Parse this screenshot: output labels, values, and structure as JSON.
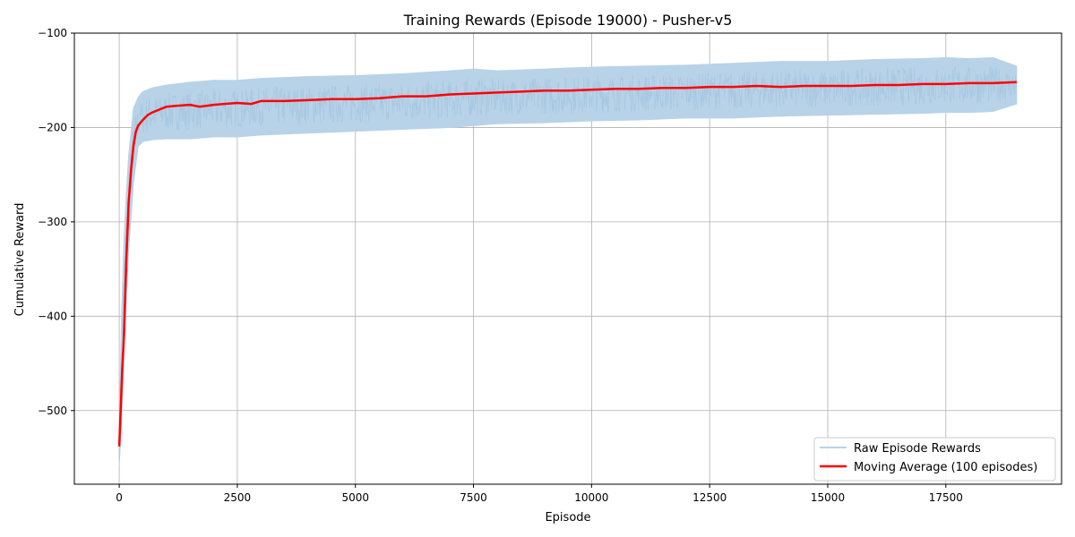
{
  "chart_data": {
    "type": "line",
    "title": "Training Rewards (Episode 19000) - Pusher-v5",
    "xlabel": "Episode",
    "ylabel": "Cumulative Reward",
    "xlim": [
      -950,
      19950
    ],
    "ylim": [
      -578,
      -100
    ],
    "xticks": [
      0,
      2500,
      5000,
      7500,
      10000,
      12500,
      15000,
      17500
    ],
    "xtick_labels": [
      "0",
      "2500",
      "5000",
      "7500",
      "10000",
      "12500",
      "15000",
      "17500"
    ],
    "yticks": [
      -500,
      -400,
      -300,
      -200,
      -100
    ],
    "ytick_labels": [
      "−500",
      "−400",
      "−300",
      "−200",
      "−100"
    ],
    "grid": true,
    "legend_position": "lower-right",
    "colors": {
      "raw": "#b8d3e8",
      "moving_average": "#ff0000",
      "grid": "#b0b0b0"
    },
    "series": [
      {
        "name": "Raw Episode Rewards",
        "style": "band",
        "x": [
          0,
          50,
          100,
          150,
          200,
          300,
          400,
          500,
          700,
          1000,
          1500,
          2000,
          2500,
          3000,
          4000,
          5000,
          6000,
          7000,
          7500,
          8000,
          9000,
          10000,
          11000,
          12000,
          12500,
          13000,
          14000,
          15000,
          16000,
          17000,
          17500,
          18000,
          18500,
          19000
        ],
        "upper": [
          -520,
          -400,
          -320,
          -270,
          -230,
          -180,
          -168,
          -162,
          -158,
          -155,
          -152,
          -150,
          -150,
          -148,
          -146,
          -145,
          -143,
          -140,
          -138,
          -140,
          -138,
          -136,
          -135,
          -134,
          -133,
          -132,
          -130,
          -130,
          -128,
          -127,
          -126,
          -127,
          -126,
          -135
        ],
        "lower": [
          -558,
          -510,
          -440,
          -380,
          -330,
          -260,
          -220,
          -215,
          -213,
          -212,
          -212,
          -210,
          -210,
          -208,
          -206,
          -204,
          -202,
          -200,
          -198,
          -196,
          -195,
          -193,
          -192,
          -190,
          -190,
          -190,
          -188,
          -187,
          -186,
          -185,
          -184,
          -184,
          -183,
          -175
        ]
      },
      {
        "name": "Moving Average (100 episodes)",
        "style": "line",
        "x": [
          0,
          30,
          60,
          100,
          150,
          200,
          250,
          300,
          350,
          400,
          500,
          600,
          700,
          800,
          1000,
          1200,
          1500,
          1700,
          2000,
          2500,
          2800,
          3000,
          3500,
          4000,
          4500,
          5000,
          5500,
          6000,
          6500,
          7000,
          7500,
          8000,
          8500,
          9000,
          9500,
          10000,
          10500,
          11000,
          11500,
          12000,
          12500,
          13000,
          13500,
          14000,
          14500,
          15000,
          15500,
          16000,
          16500,
          17000,
          17500,
          18000,
          18500,
          19000
        ],
        "values": [
          -538,
          -500,
          -460,
          -420,
          -340,
          -280,
          -245,
          -220,
          -205,
          -198,
          -192,
          -187,
          -184,
          -182,
          -178,
          -177,
          -176,
          -178,
          -176,
          -174,
          -175,
          -172,
          -172,
          -171,
          -170,
          -170,
          -169,
          -167,
          -167,
          -165,
          -164,
          -163,
          -162,
          -161,
          -161,
          -160,
          -159,
          -159,
          -158,
          -158,
          -157,
          -157,
          -156,
          -157,
          -156,
          -156,
          -156,
          -155,
          -155,
          -154,
          -154,
          -153,
          -153,
          -152
        ]
      }
    ]
  }
}
